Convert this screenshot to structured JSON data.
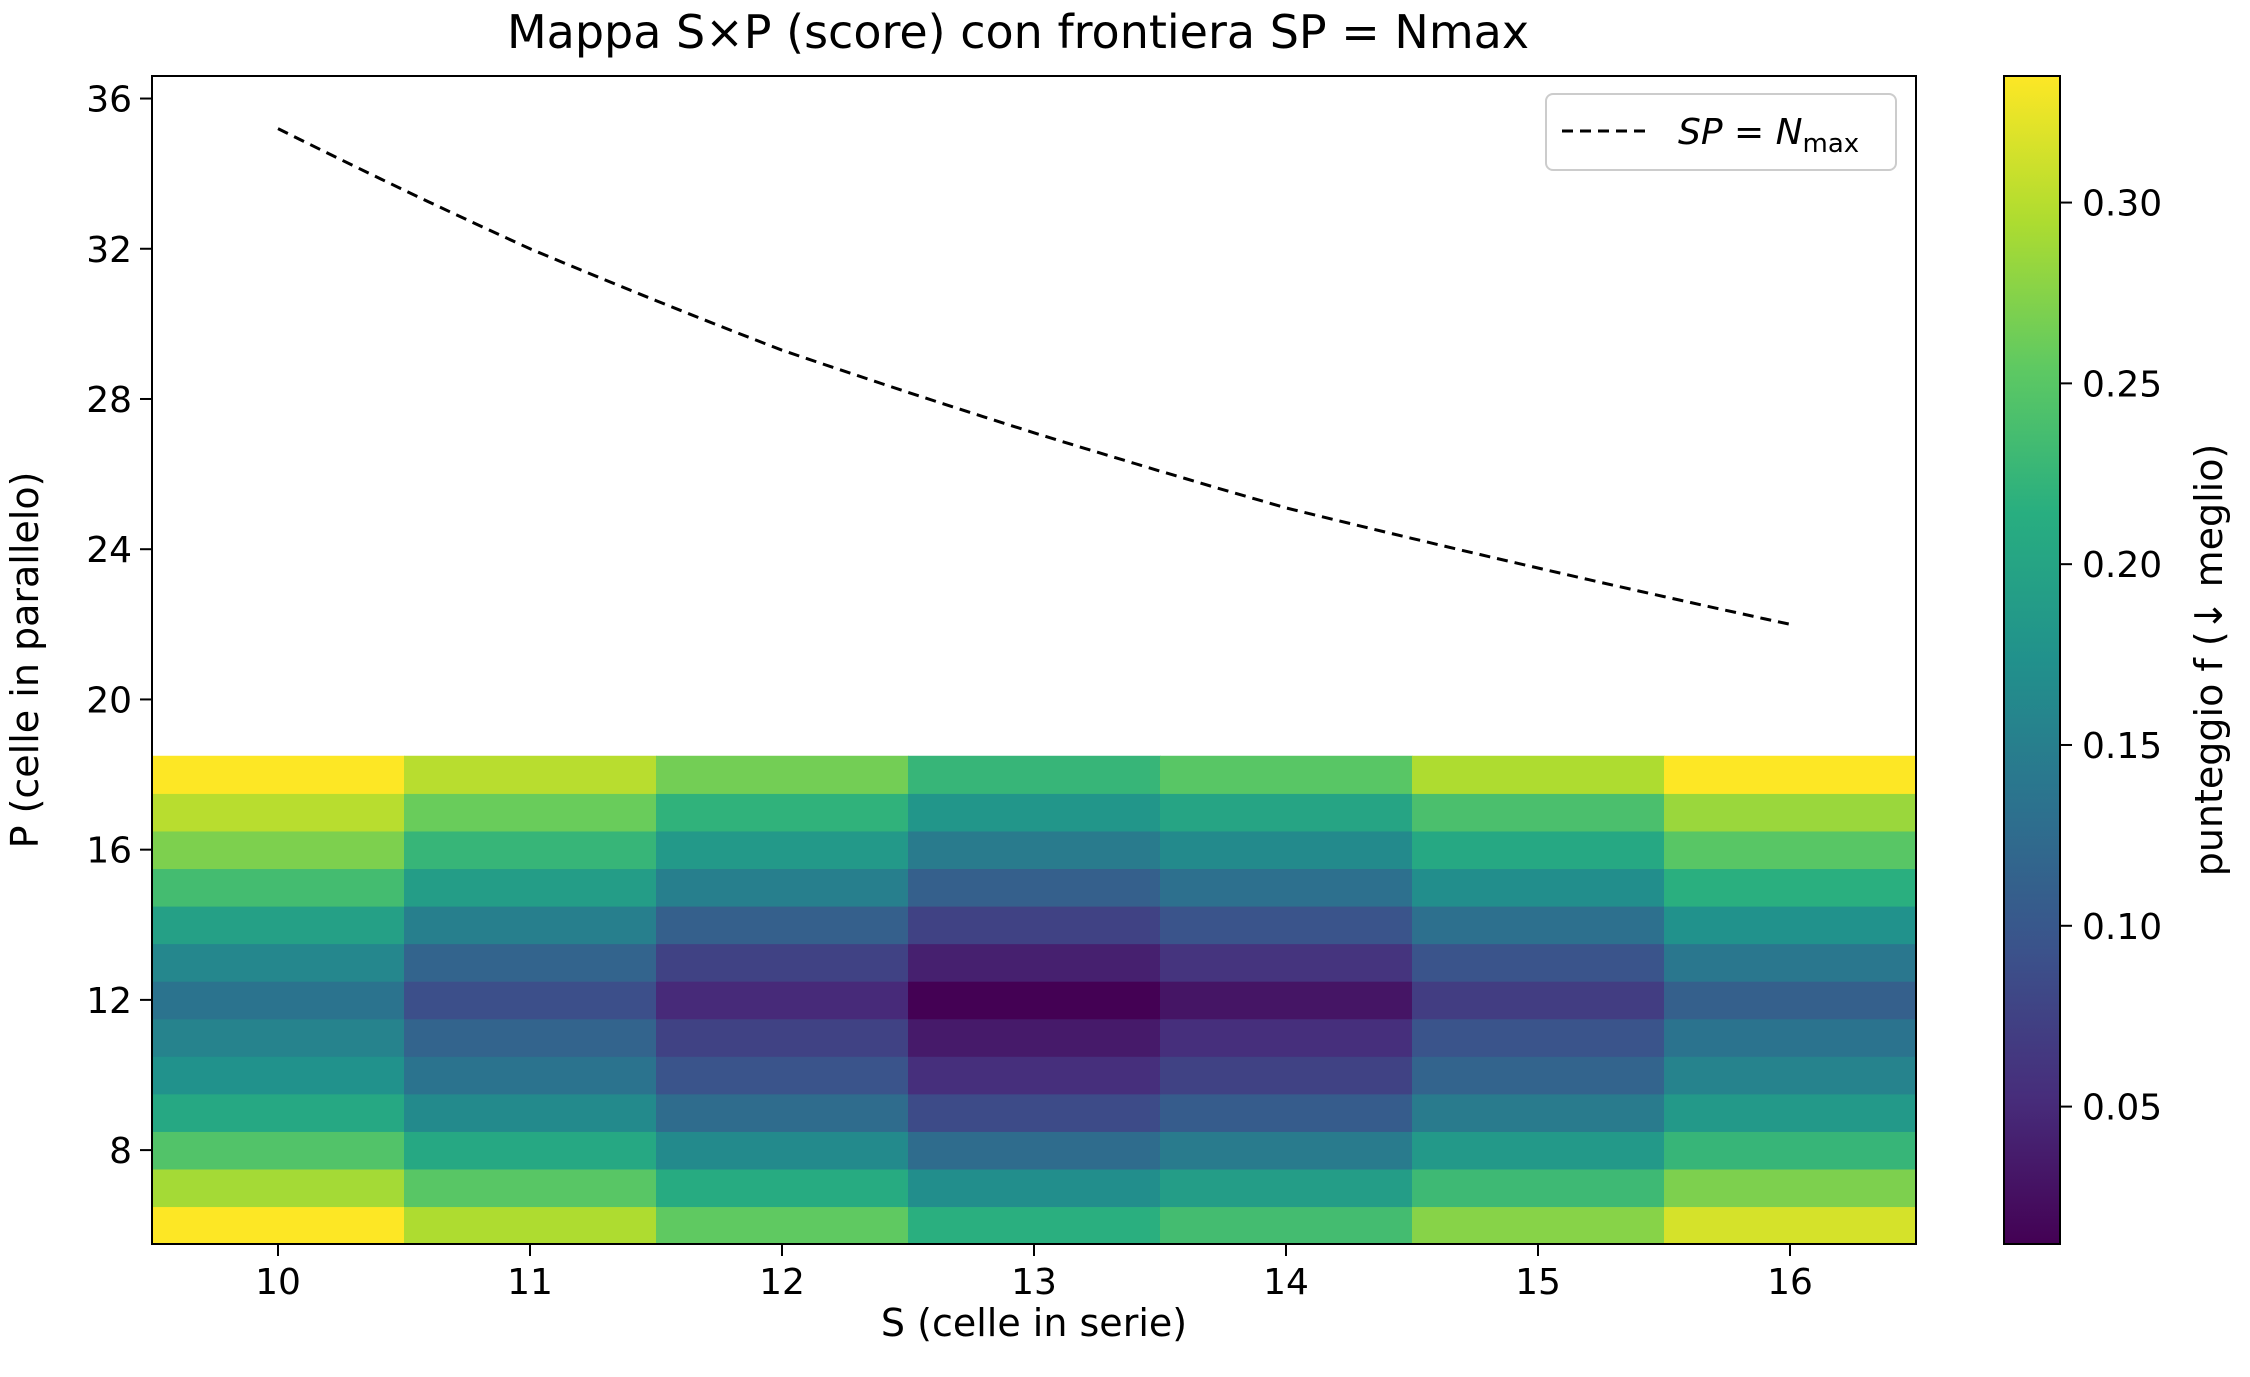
{
  "chart_data": {
    "type": "heatmap",
    "title": "Mappa S×P (score) con frontiera SP = Nmax",
    "xlabel": "S (celle in serie)",
    "ylabel": "P (celle in parallelo)",
    "colorbar_label": "punteggio f (↓ meglio)",
    "x": [
      10,
      11,
      12,
      13,
      14,
      15,
      16
    ],
    "y": [
      6,
      7,
      8,
      9,
      10,
      11,
      12,
      13,
      14,
      15,
      16,
      17,
      18
    ],
    "xlim": [
      9.5,
      16.5
    ],
    "ylim": [
      5.5,
      36.6
    ],
    "xticks": [
      "10",
      "11",
      "12",
      "13",
      "14",
      "15",
      "16"
    ],
    "yticks": [
      "8",
      "12",
      "16",
      "20",
      "24",
      "28",
      "32",
      "36"
    ],
    "colorbar_ticks": [
      "0.05",
      "0.10",
      "0.15",
      "0.20",
      "0.25",
      "0.30"
    ],
    "color_range": [
      0.012,
      0.335
    ],
    "colormap": "viridis",
    "z": [
      [
        0.335,
        0.295,
        0.255,
        0.215,
        0.235,
        0.275,
        0.315
      ],
      [
        0.29,
        0.25,
        0.21,
        0.17,
        0.19,
        0.23,
        0.27
      ],
      [
        0.245,
        0.205,
        0.165,
        0.125,
        0.145,
        0.185,
        0.225
      ],
      [
        0.205,
        0.165,
        0.125,
        0.085,
        0.105,
        0.145,
        0.185
      ],
      [
        0.175,
        0.135,
        0.095,
        0.055,
        0.075,
        0.115,
        0.155
      ],
      [
        0.155,
        0.115,
        0.075,
        0.035,
        0.055,
        0.095,
        0.135
      ],
      [
        0.135,
        0.09,
        0.05,
        0.012,
        0.03,
        0.07,
        0.11
      ],
      [
        0.16,
        0.115,
        0.075,
        0.04,
        0.06,
        0.095,
        0.14
      ],
      [
        0.195,
        0.15,
        0.11,
        0.075,
        0.095,
        0.13,
        0.175
      ],
      [
        0.235,
        0.19,
        0.15,
        0.11,
        0.13,
        0.17,
        0.215
      ],
      [
        0.27,
        0.225,
        0.185,
        0.145,
        0.165,
        0.205,
        0.25
      ],
      [
        0.3,
        0.26,
        0.22,
        0.18,
        0.2,
        0.24,
        0.285
      ],
      [
        0.335,
        0.3,
        0.265,
        0.225,
        0.25,
        0.295,
        0.335
      ]
    ],
    "series": [
      {
        "name": "SP = Nmax",
        "style": "dashed",
        "color": "#000000",
        "x": [
          10,
          11,
          12,
          13,
          14,
          15,
          16
        ],
        "y": [
          35.2,
          32.0,
          29.3,
          27.1,
          25.1,
          23.5,
          22.0
        ]
      }
    ],
    "legend_location": "top-right",
    "legend_label_main": "SP = N",
    "legend_label_sub": "max",
    "grid": false
  }
}
